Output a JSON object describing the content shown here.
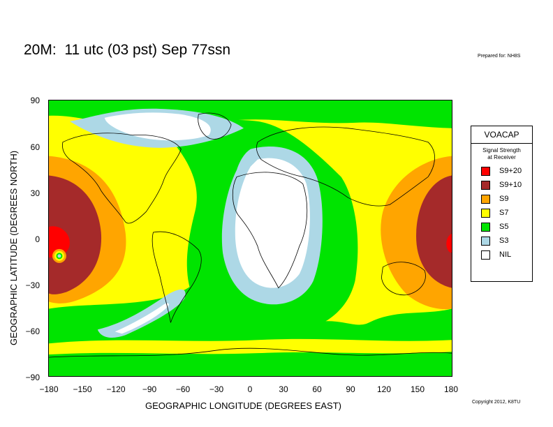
{
  "title": "20M:  11 utc (03 pst) Sep 77ssn",
  "prepared_for": "Prepared for: NH8S",
  "copyright": "Copyright 2012, K8TU",
  "axes": {
    "xlabel": "GEOGRAPHIC LONGITUDE (DEGREES EAST)",
    "ylabel": "GEOGRAPHIC LATITUDE (DEGREES NORTH)",
    "xticks": [
      "−180",
      "−150",
      "−120",
      "−90",
      "−60",
      "−30",
      "0",
      "30",
      "60",
      "90",
      "120",
      "150",
      "180"
    ],
    "yticks": [
      "90",
      "60",
      "30",
      "0",
      "−30",
      "−60",
      "−90"
    ]
  },
  "legend": {
    "title": "VOACAP",
    "subtitle_line1": "Signal Strength",
    "subtitle_line2": "at Receiver",
    "items": [
      {
        "label": "S9+20",
        "color": "#ff0000"
      },
      {
        "label": "S9+10",
        "color": "#a52a2a"
      },
      {
        "label": "S9",
        "color": "#ffa500"
      },
      {
        "label": "S7",
        "color": "#ffff00"
      },
      {
        "label": "S5",
        "color": "#00e400"
      },
      {
        "label": "S3",
        "color": "#add8e6"
      },
      {
        "label": "NIL",
        "color": "#ffffff"
      }
    ]
  },
  "colors": {
    "s9p20": "#ff0000",
    "s9p10": "#a52a2a",
    "s9": "#ffa500",
    "s7": "#ffff00",
    "s5": "#00e400",
    "s3": "#add8e6",
    "nil": "#ffffff",
    "coast": "#000000"
  }
}
